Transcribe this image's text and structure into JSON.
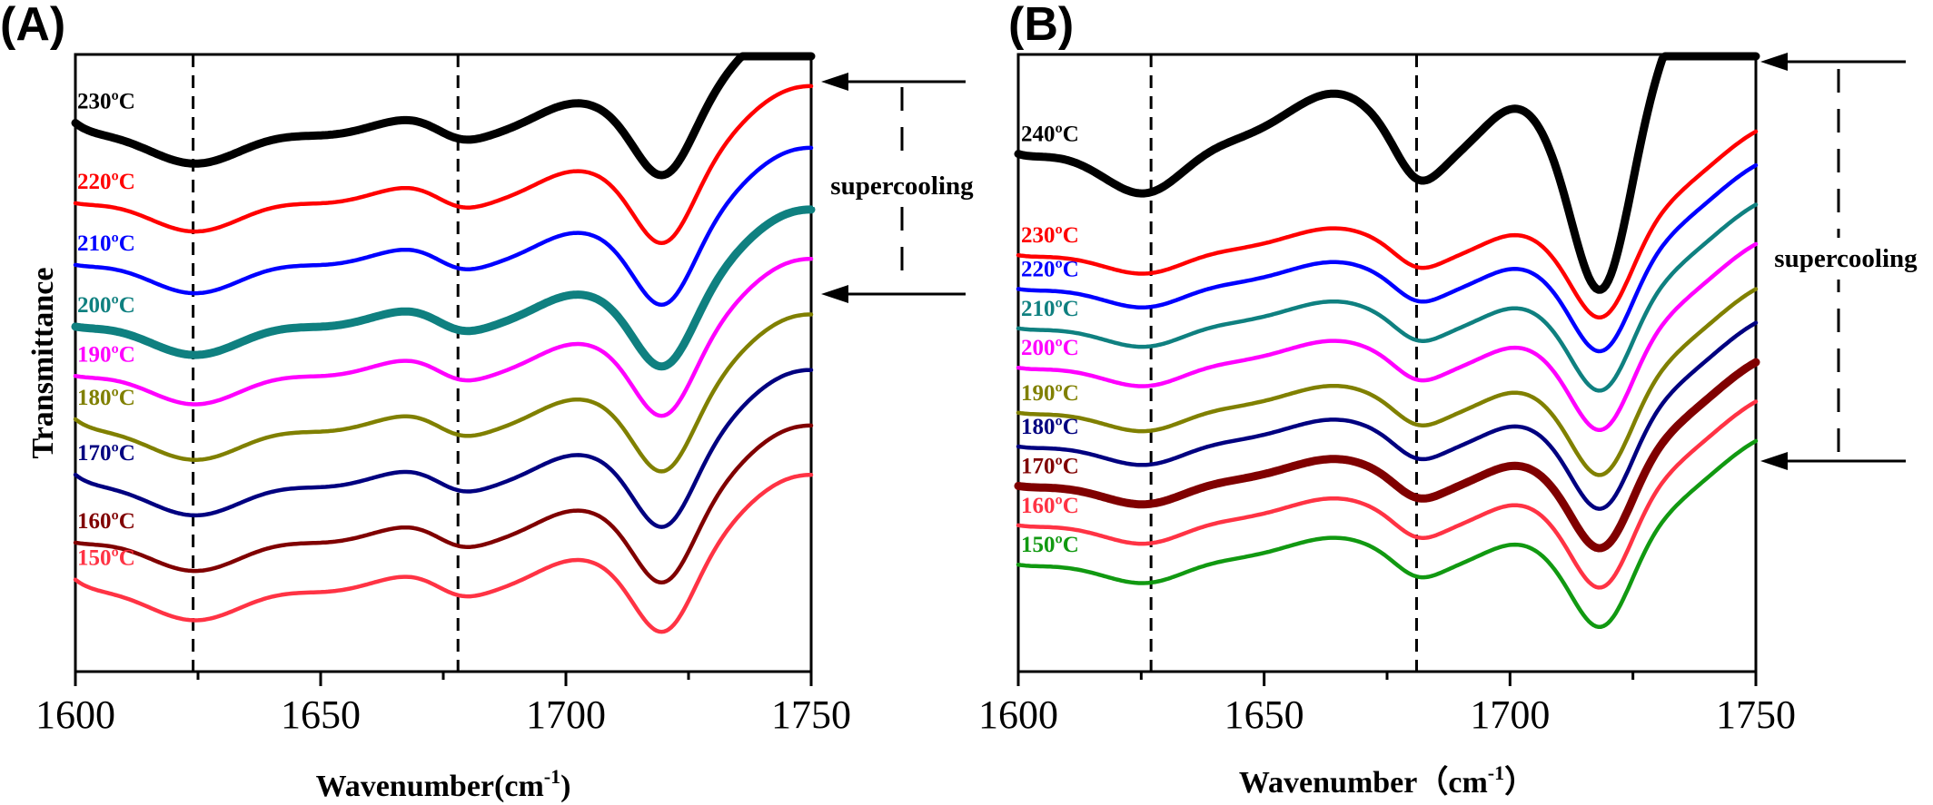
{
  "chart_data": [
    {
      "panel": "(A)",
      "type": "line",
      "xlabel_main": "Wavenumber(cm",
      "xlabel_sup": "-1",
      "xlabel_close": ")",
      "ylabel": "Transmittance",
      "xlim": [
        1600,
        1750
      ],
      "xticks": [
        "1600",
        "1650",
        "1700",
        "1750"
      ],
      "y_axis_ticks": false,
      "grid": false,
      "reference_lines_x": [
        1624,
        1678
      ],
      "annotation": "supercooling",
      "series": [
        {
          "name": "230ºC",
          "color": "#000000",
          "thick": true,
          "offset": 8.6,
          "start": 0.3
        },
        {
          "name": "220ºC",
          "color": "#ff0000",
          "thick": false,
          "offset": 7.5,
          "start": 0.1
        },
        {
          "name": "210ºC",
          "color": "#0000ff",
          "thick": false,
          "offset": 6.5,
          "start": 0.1
        },
        {
          "name": "200ºC",
          "color": "#0f8080",
          "thick": true,
          "offset": 5.5,
          "start": 0.1
        },
        {
          "name": "190ºC",
          "color": "#ff00ff",
          "thick": false,
          "offset": 4.7,
          "start": 0.1
        },
        {
          "name": "180ºC",
          "color": "#808000",
          "thick": false,
          "offset": 3.8,
          "start": 0.3
        },
        {
          "name": "170ºC",
          "color": "#000080",
          "thick": false,
          "offset": 2.9,
          "start": 0.3
        },
        {
          "name": "160ºC",
          "color": "#800000",
          "thick": false,
          "offset": 2.0,
          "start": 0.1
        },
        {
          "name": "150ºC",
          "color": "#ff3344",
          "thick": false,
          "offset": 1.2,
          "start": 0.3
        }
      ]
    },
    {
      "panel": "(B)",
      "type": "line",
      "xlabel_main": "Wavenumber（cm",
      "xlabel_sup": "-1",
      "xlabel_close": "）",
      "ylabel": "",
      "xlim": [
        1600,
        1750
      ],
      "xticks": [
        "1600",
        "1650",
        "1700",
        "1750"
      ],
      "y_axis_ticks": false,
      "grid": false,
      "reference_lines_x": [
        1627,
        1681
      ],
      "annotation": "supercooling",
      "series": [
        {
          "name": "240ºC",
          "color": "#000000",
          "thick": true,
          "offset": 9.0,
          "start": 0.2
        },
        {
          "name": "230ºC",
          "color": "#ff0000",
          "thick": false,
          "offset": 7.3,
          "start": 0.1
        },
        {
          "name": "220ºC",
          "color": "#0000ff",
          "thick": false,
          "offset": 6.7,
          "start": 0.1
        },
        {
          "name": "210ºC",
          "color": "#0f8080",
          "thick": false,
          "offset": 6.0,
          "start": 0.1
        },
        {
          "name": "200ºC",
          "color": "#ff00ff",
          "thick": false,
          "offset": 5.3,
          "start": 0.1
        },
        {
          "name": "190ºC",
          "color": "#808000",
          "thick": false,
          "offset": 4.5,
          "start": 0.1
        },
        {
          "name": "180ºC",
          "color": "#000080",
          "thick": false,
          "offset": 3.9,
          "start": 0.1
        },
        {
          "name": "170ºC",
          "color": "#800000",
          "thick": true,
          "offset": 3.2,
          "start": 0.1
        },
        {
          "name": "160ºC",
          "color": "#ff3344",
          "thick": false,
          "offset": 2.5,
          "start": 0.1
        },
        {
          "name": "150ºC",
          "color": "#119911",
          "thick": false,
          "offset": 1.8,
          "start": 0.1
        }
      ]
    }
  ]
}
